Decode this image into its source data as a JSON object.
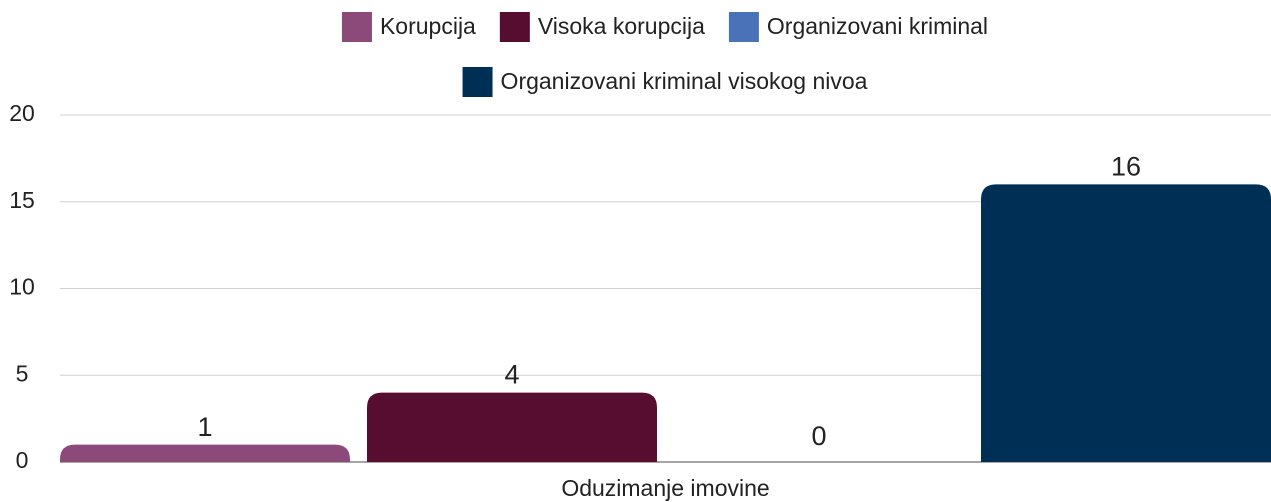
{
  "chart_data": {
    "type": "bar",
    "categories": [
      "Oduzimanje imovine"
    ],
    "series": [
      {
        "name": "Korupcija",
        "color": "#8b4a7a",
        "values": [
          1
        ]
      },
      {
        "name": "Visoka korupcija",
        "color": "#560d30",
        "values": [
          4
        ]
      },
      {
        "name": "Organizovani kriminal",
        "color": "#4a72b8",
        "values": [
          0
        ]
      },
      {
        "name": "Organizovani kriminal visokog nivoa",
        "color": "#002f55",
        "values": [
          16
        ]
      }
    ],
    "ylim": [
      0,
      20
    ],
    "yticks": [
      0,
      5,
      10,
      15,
      20
    ],
    "grid": true,
    "legend": "top"
  }
}
